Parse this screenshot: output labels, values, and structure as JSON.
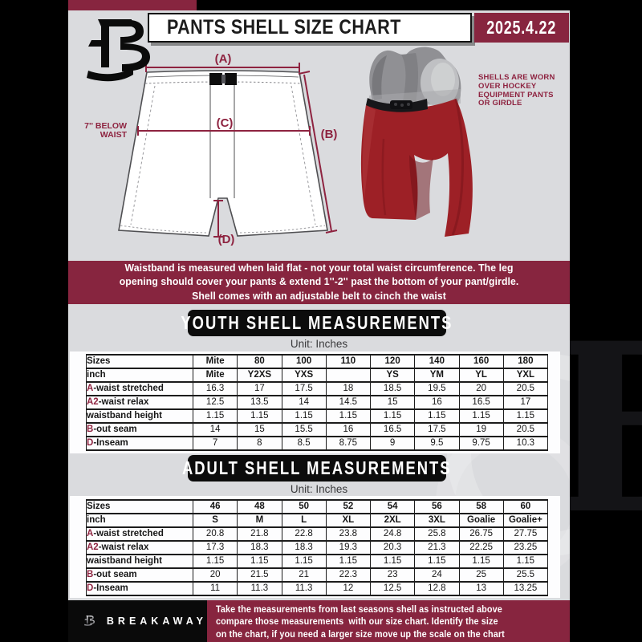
{
  "header": {
    "title": "PANTS SHELL SIZE CHART",
    "date": "2025.4.22"
  },
  "diagram": {
    "label_a": "(A)",
    "label_b": "(B)",
    "label_c": "(C)",
    "label_d": "(D)",
    "side_label_line1": "7'' BELOW",
    "side_label_line2": "WAIST",
    "photo_note": "SHELLS ARE WORN\nOVER HOCKEY\nEQUIPMENT PANTS\nOR GIRDLE"
  },
  "info_banner": "Waistband is measured when laid flat - not your total waist circumference. The leg\nopening should cover your pants & extend 1''-2'' past the bottom of your pant/girdle.\nShell comes with an adjustable belt to cinch the waist",
  "youth": {
    "title": "YOUTH SHELL MEASUREMENTS",
    "unit": "Unit: Inches",
    "table": {
      "rows": [
        {
          "label": "Sizes",
          "prefix": "",
          "header": true,
          "values": [
            "Mite",
            "80",
            "100",
            "110",
            "120",
            "140",
            "160",
            "180"
          ]
        },
        {
          "label": "inch",
          "prefix": "",
          "header": true,
          "values": [
            "Mite",
            "Y2XS",
            "YXS",
            "",
            "YS",
            "YM",
            "YL",
            "YXL"
          ]
        },
        {
          "label": "-waist stretched",
          "prefix": "A",
          "header": false,
          "values": [
            "16.3",
            "17",
            "17.5",
            "18",
            "18.5",
            "19.5",
            "20",
            "20.5"
          ]
        },
        {
          "label": "-waist relax",
          "prefix": "A2",
          "header": false,
          "values": [
            "12.5",
            "13.5",
            "14",
            "14.5",
            "15",
            "16",
            "16.5",
            "17"
          ]
        },
        {
          "label": "waistband height",
          "prefix": "",
          "header": false,
          "values": [
            "1.15",
            "1.15",
            "1.15",
            "1.15",
            "1.15",
            "1.15",
            "1.15",
            "1.15"
          ]
        },
        {
          "label": "-out seam",
          "prefix": "B",
          "header": false,
          "values": [
            "14",
            "15",
            "15.5",
            "16",
            "16.5",
            "17.5",
            "19",
            "20.5"
          ]
        },
        {
          "label": "-Inseam",
          "prefix": "D",
          "header": false,
          "values": [
            "7",
            "8",
            "8.5",
            "8.75",
            "9",
            "9.5",
            "9.75",
            "10.3"
          ]
        }
      ]
    }
  },
  "adult": {
    "title": "ADULT SHELL MEASUREMENTS",
    "unit": "Unit: Inches",
    "table": {
      "rows": [
        {
          "label": "Sizes",
          "prefix": "",
          "header": true,
          "values": [
            "46",
            "48",
            "50",
            "52",
            "54",
            "56",
            "58",
            "60"
          ]
        },
        {
          "label": "inch",
          "prefix": "",
          "header": true,
          "values": [
            "S",
            "M",
            "L",
            "XL",
            "2XL",
            "3XL",
            "Goalie",
            "Goalie+"
          ]
        },
        {
          "label": "-waist stretched",
          "prefix": "A",
          "header": false,
          "values": [
            "20.8",
            "21.8",
            "22.8",
            "23.8",
            "24.8",
            "25.8",
            "26.75",
            "27.75"
          ]
        },
        {
          "label": "-waist relax",
          "prefix": "A2",
          "header": false,
          "values": [
            "17.3",
            "18.3",
            "18.3",
            "19.3",
            "20.3",
            "21.3",
            "22.25",
            "23.25"
          ]
        },
        {
          "label": "waistband height",
          "prefix": "",
          "header": false,
          "values": [
            "1.15",
            "1.15",
            "1.15",
            "1.15",
            "1.15",
            "1.15",
            "1.15",
            "1.15"
          ]
        },
        {
          "label": "-out seam",
          "prefix": "B",
          "header": false,
          "values": [
            "20",
            "21.5",
            "21",
            "22.3",
            "23",
            "24",
            "25",
            "25.5"
          ]
        },
        {
          "label": "-Inseam",
          "prefix": "D",
          "header": false,
          "values": [
            "11",
            "11.3",
            "11.3",
            "12",
            "12.5",
            "12.8",
            "13",
            "13.25"
          ]
        }
      ]
    }
  },
  "footer": {
    "brand": "BREAKAWAY",
    "note": "Take the measurements from last seasons shell as instructed above\ncompare those measurements  with our size chart. Identify the size\non the chart, if you need a larger size move up the scale on the chart"
  },
  "colors": {
    "maroon": "#87253f",
    "maroon_text": "#8e2340",
    "sheet_gray": "#dadbde",
    "banner_black": "#0c0c0c",
    "shell_red": "#9d2026"
  }
}
